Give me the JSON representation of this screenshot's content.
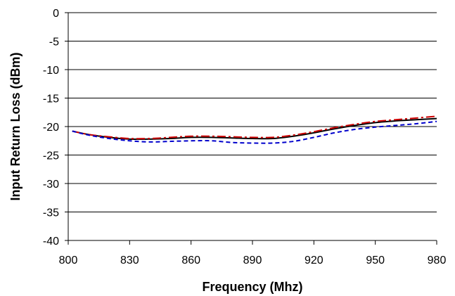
{
  "chart_data": {
    "type": "line",
    "title": "",
    "xlabel": "Frequency (Mhz)",
    "ylabel": "Input Return Loss (dBm)",
    "xlim": [
      800,
      980
    ],
    "ylim": [
      -40,
      0
    ],
    "x_ticks": [
      800,
      830,
      860,
      890,
      920,
      950,
      980
    ],
    "y_ticks": [
      0,
      -5,
      -10,
      -15,
      -20,
      -25,
      -30,
      -35,
      -40
    ],
    "x_tick_labels": [
      "800",
      "830",
      "860",
      "890",
      "920",
      "950",
      "980"
    ],
    "y_tick_labels": [
      "0",
      "-5",
      "-10",
      "-15",
      "-20",
      "-25",
      "-30",
      "-35",
      "-40"
    ],
    "grid": "horizontal",
    "legend": "none",
    "series": [
      {
        "color": "#000000",
        "style": "solid",
        "x": [
          802,
          810,
          820,
          830,
          840,
          850,
          860,
          870,
          880,
          890,
          900,
          910,
          920,
          930,
          940,
          950,
          960,
          970,
          980
        ],
        "y": [
          -20.8,
          -21.4,
          -21.9,
          -22.2,
          -22.2,
          -22.1,
          -21.9,
          -21.9,
          -22.0,
          -22.1,
          -22.1,
          -21.7,
          -21.1,
          -20.4,
          -19.8,
          -19.3,
          -19.0,
          -18.8,
          -18.6
        ]
      },
      {
        "color": "#cc0000",
        "style": "dash-dot",
        "x": [
          802,
          810,
          820,
          830,
          840,
          850,
          860,
          870,
          880,
          890,
          900,
          910,
          920,
          930,
          940,
          950,
          960,
          970,
          980
        ],
        "y": [
          -20.8,
          -21.4,
          -21.8,
          -22.1,
          -22.1,
          -21.9,
          -21.7,
          -21.7,
          -21.8,
          -21.9,
          -21.9,
          -21.5,
          -20.9,
          -20.2,
          -19.6,
          -19.1,
          -18.8,
          -18.5,
          -18.2
        ]
      },
      {
        "color": "#0000cc",
        "style": "dashed",
        "x": [
          802,
          810,
          820,
          830,
          840,
          850,
          860,
          870,
          880,
          890,
          900,
          910,
          920,
          930,
          940,
          950,
          960,
          970,
          980
        ],
        "y": [
          -20.8,
          -21.5,
          -22.1,
          -22.5,
          -22.7,
          -22.6,
          -22.5,
          -22.5,
          -22.8,
          -22.9,
          -22.9,
          -22.6,
          -21.9,
          -21.1,
          -20.5,
          -20.1,
          -19.8,
          -19.5,
          -19.1
        ]
      }
    ]
  }
}
